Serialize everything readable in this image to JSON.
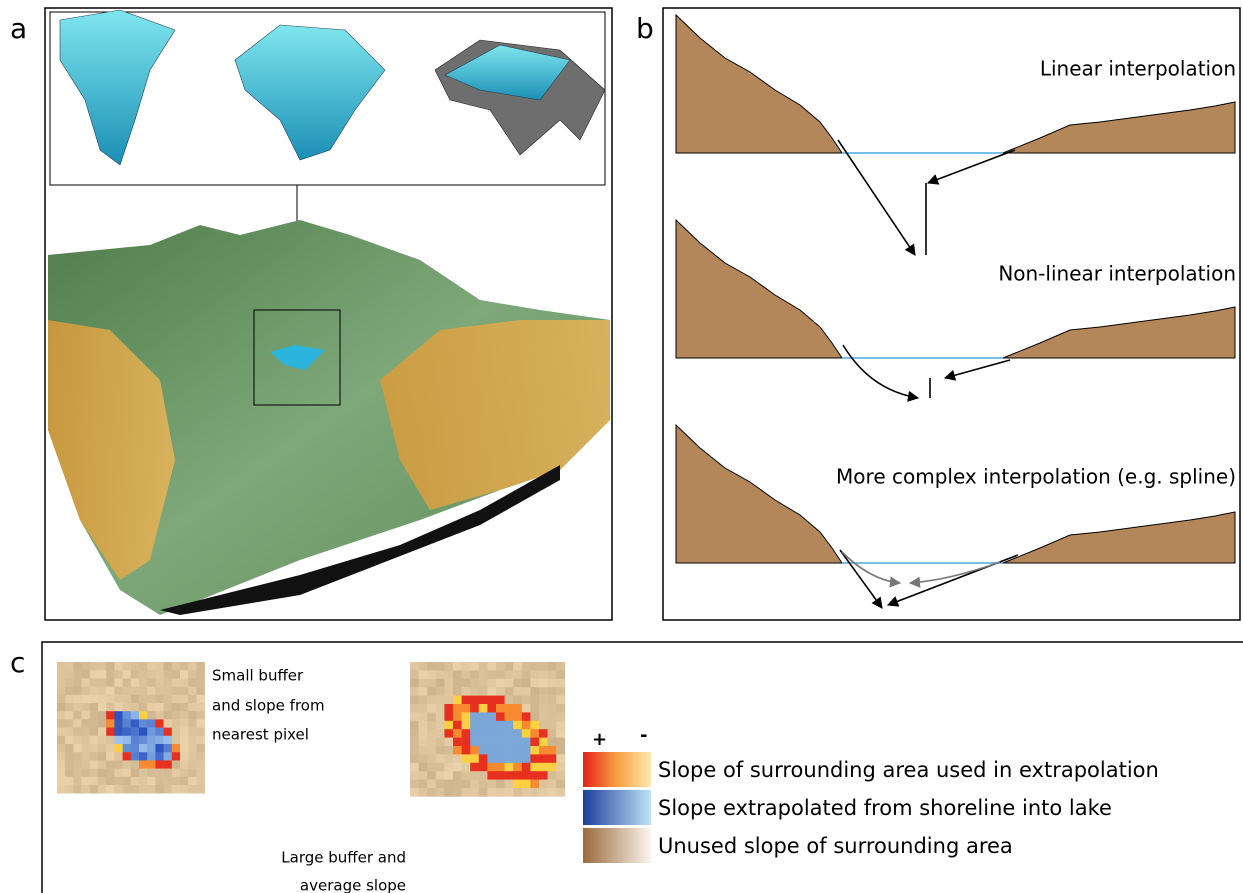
{
  "panels": {
    "a": {
      "label": "a"
    },
    "b": {
      "label": "b",
      "profiles": [
        "Linear interpolation",
        "Non-linear interpolation",
        "More complex interpolation (e.g. spline)"
      ]
    },
    "c": {
      "label": "c",
      "small_buffer": [
        "Small buffer",
        "and slope from",
        "nearest pixel"
      ],
      "large_buffer": [
        "Large buffer and",
        "average slope"
      ],
      "legend": {
        "plus": "+",
        "minus": "-",
        "entries": [
          "Slope of surrounding area used in extrapolation",
          "Slope extrapolated from shoreline into lake",
          "Unused slope of surrounding area"
        ]
      }
    }
  }
}
